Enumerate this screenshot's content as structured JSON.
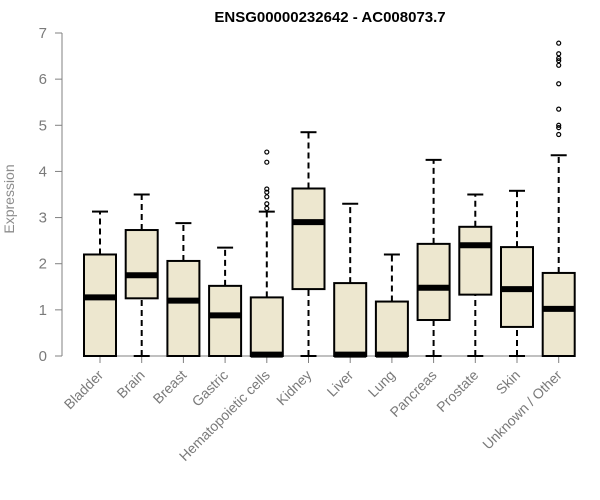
{
  "chart_data": {
    "type": "boxplot",
    "title": "ENSG00000232642 - AC008073.7",
    "xlabel": "",
    "ylabel": "Expression",
    "ylim": [
      0,
      7
    ],
    "yticks": [
      0,
      1,
      2,
      3,
      4,
      5,
      6,
      7
    ],
    "grid": false,
    "colors": {
      "box_fill": "#ede7cf",
      "box_stroke": "#000000",
      "axis": "#808080",
      "tick_text": "#7a7a7a"
    },
    "categories": [
      "Bladder",
      "Brain",
      "Breast",
      "Gastric",
      "Hematopoietic cells",
      "Kidney",
      "Liver",
      "Lung",
      "Pancreas",
      "Prostate",
      "Skin",
      "Unknown / Other"
    ],
    "boxes": [
      {
        "min": 0,
        "q1": 0,
        "median": 1.27,
        "q3": 2.2,
        "max": 3.13,
        "outliers": []
      },
      {
        "min": 0,
        "q1": 1.25,
        "median": 1.75,
        "q3": 2.73,
        "max": 3.5,
        "outliers": []
      },
      {
        "min": 0,
        "q1": 0,
        "median": 1.2,
        "q3": 2.06,
        "max": 2.88,
        "outliers": []
      },
      {
        "min": 0,
        "q1": 0,
        "median": 0.88,
        "q3": 1.52,
        "max": 2.35,
        "outliers": []
      },
      {
        "min": 0,
        "q1": 0,
        "median": 0.03,
        "q3": 1.27,
        "max": 3.13,
        "outliers": [
          3.2,
          3.3,
          3.45,
          3.55,
          3.62,
          4.2,
          4.42
        ]
      },
      {
        "min": 0,
        "q1": 1.45,
        "median": 2.9,
        "q3": 3.63,
        "max": 4.85,
        "outliers": []
      },
      {
        "min": 0,
        "q1": 0,
        "median": 0.03,
        "q3": 1.58,
        "max": 3.3,
        "outliers": []
      },
      {
        "min": 0,
        "q1": 0,
        "median": 0.03,
        "q3": 1.18,
        "max": 2.2,
        "outliers": []
      },
      {
        "min": 0,
        "q1": 0.78,
        "median": 1.48,
        "q3": 2.43,
        "max": 4.25,
        "outliers": []
      },
      {
        "min": 0,
        "q1": 1.33,
        "median": 2.4,
        "q3": 2.8,
        "max": 3.5,
        "outliers": []
      },
      {
        "min": 0,
        "q1": 0.63,
        "median": 1.45,
        "q3": 2.36,
        "max": 3.58,
        "outliers": []
      },
      {
        "min": 0,
        "q1": 0,
        "median": 1.02,
        "q3": 1.8,
        "max": 4.35,
        "outliers": [
          4.8,
          4.95,
          5.0,
          5.35,
          5.9,
          6.3,
          6.4,
          6.45,
          6.55,
          6.78
        ]
      }
    ]
  }
}
